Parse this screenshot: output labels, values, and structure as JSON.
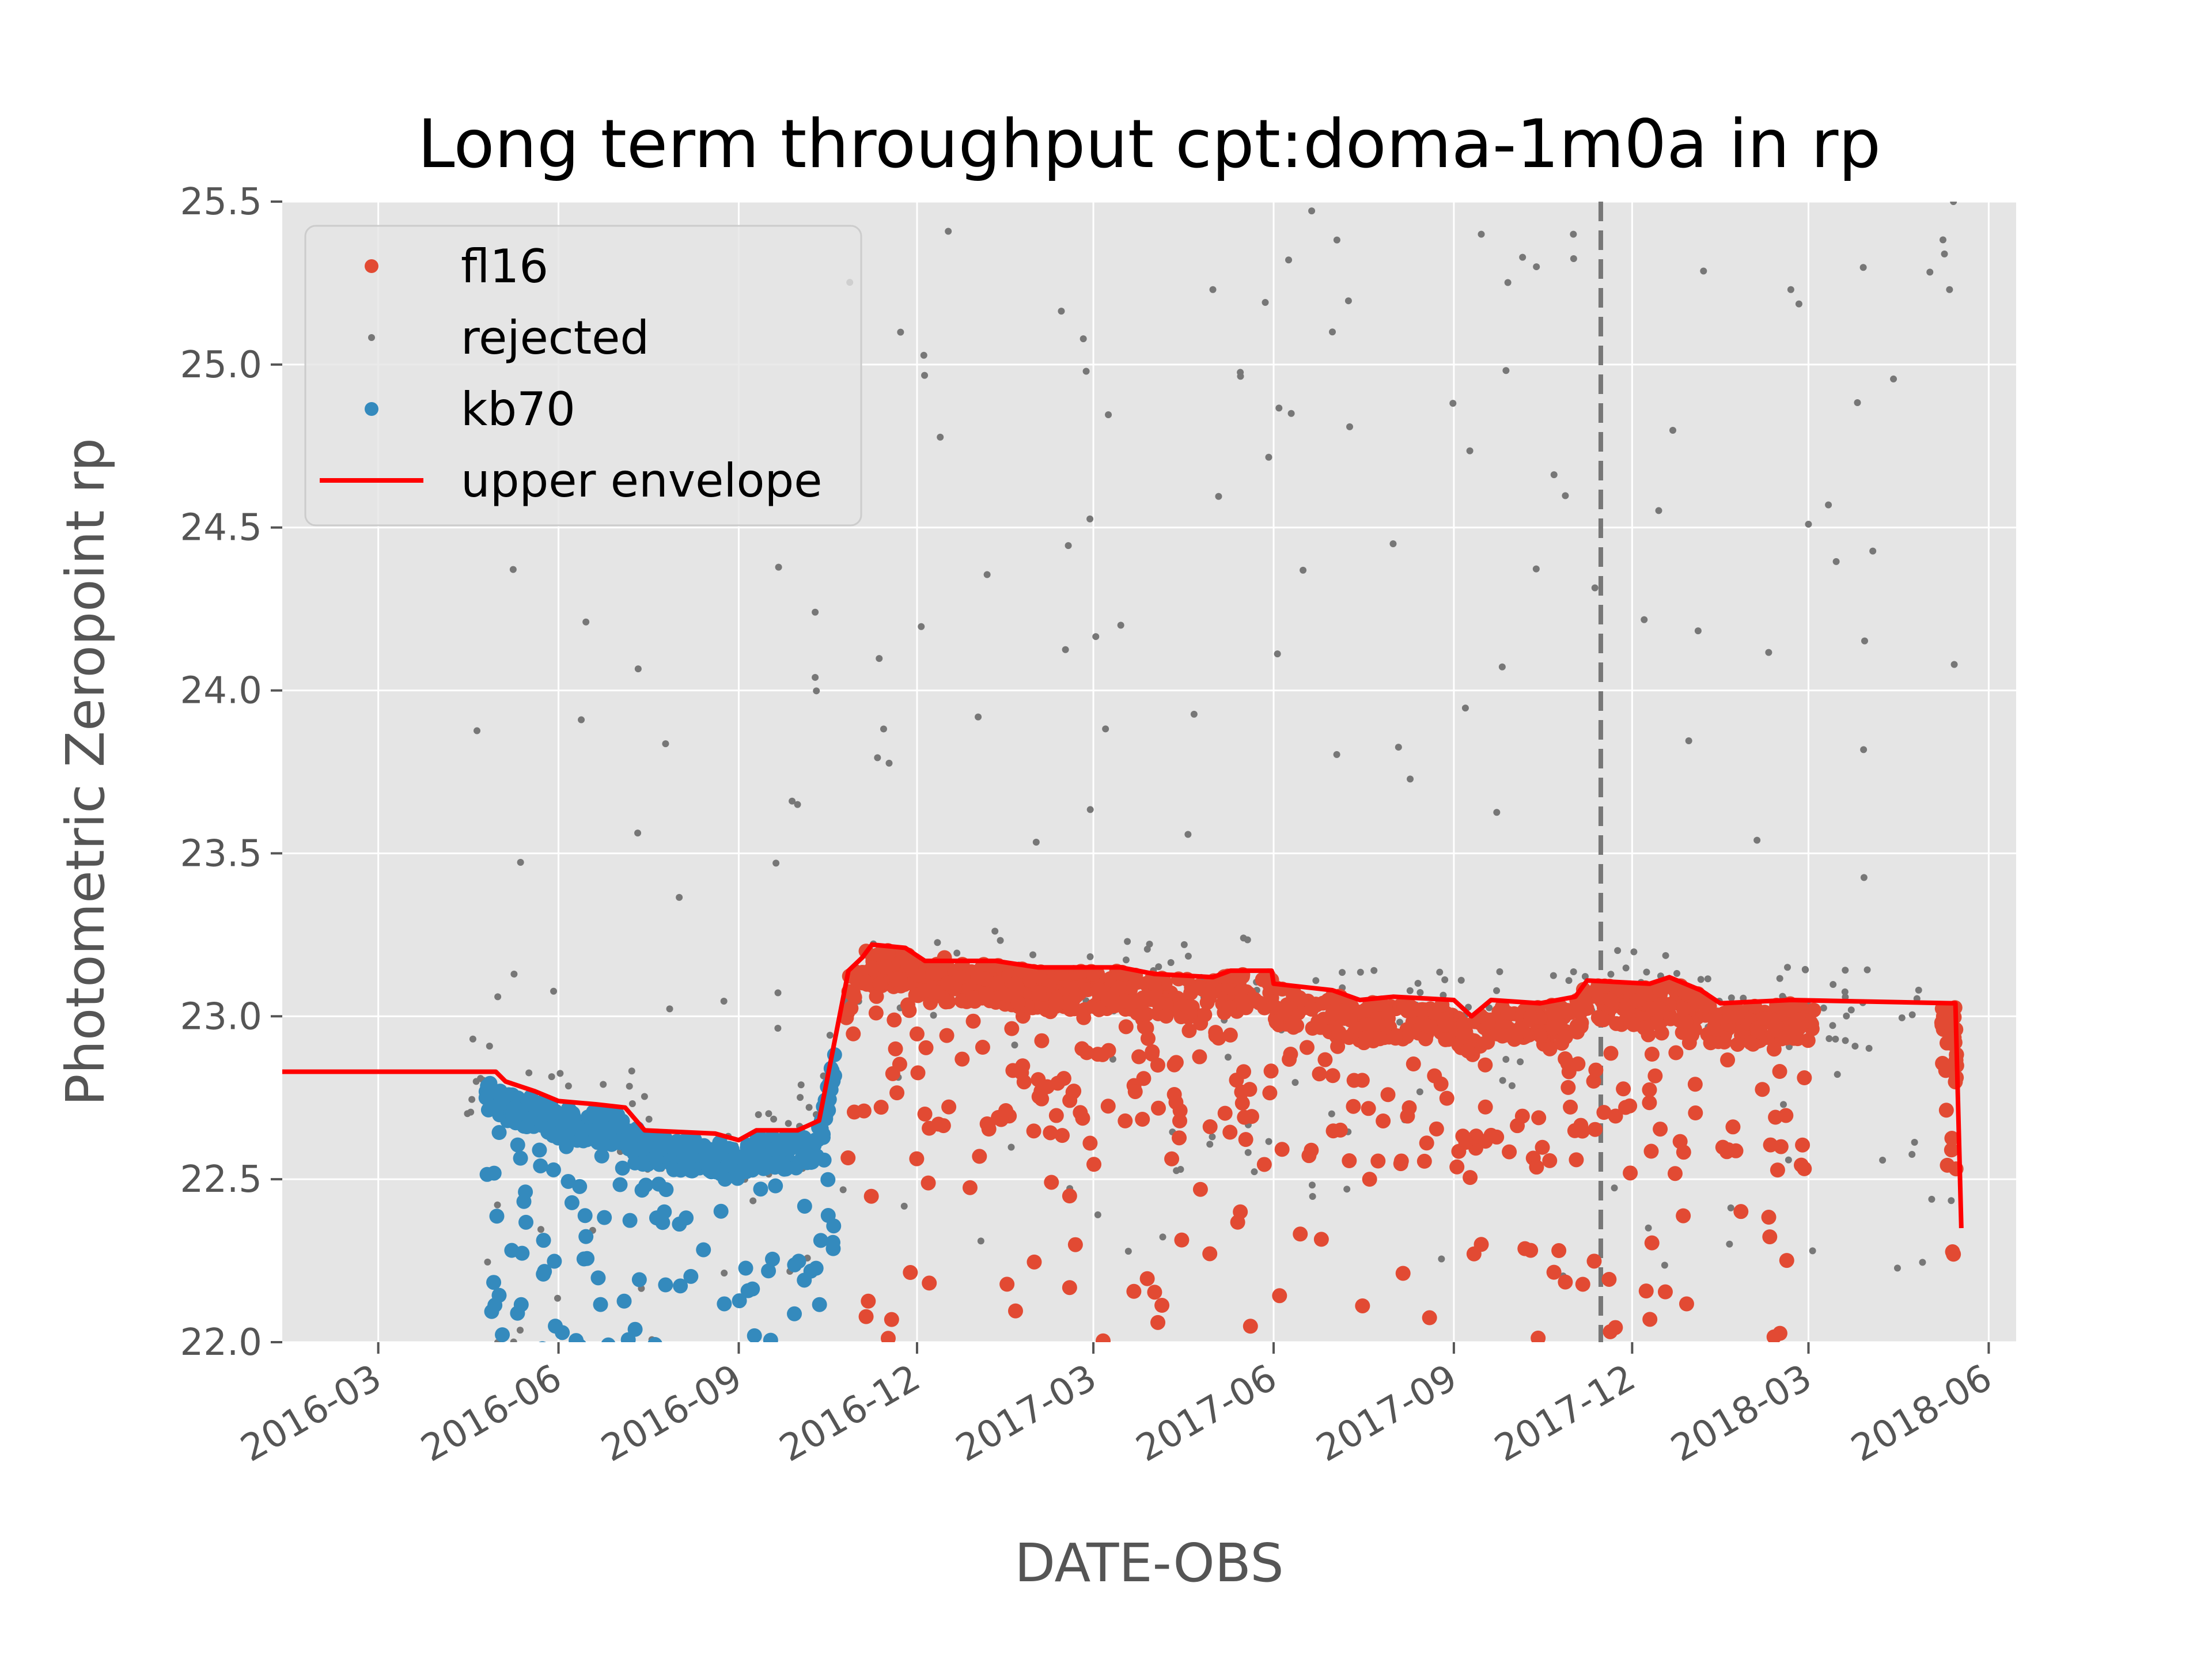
{
  "chart_data": {
    "type": "scatter",
    "title": "Long term throughput  cpt:doma-1m0a in rp",
    "xlabel": "DATE-OBS",
    "ylabel": "Photometric Zeropoint rp",
    "xlim": [
      "2016-01-12",
      "2018-06-15"
    ],
    "ylim": [
      22.0,
      25.5
    ],
    "x_ticks": [
      "2016-03",
      "2016-06",
      "2016-09",
      "2016-12",
      "2017-03",
      "2017-06",
      "2017-09",
      "2017-12",
      "2018-03",
      "2018-06"
    ],
    "y_ticks": [
      "22.0",
      "22.5",
      "23.0",
      "23.5",
      "24.0",
      "24.5",
      "25.0",
      "25.5"
    ],
    "grid": true,
    "legend": {
      "placement": "top-left",
      "entries": [
        {
          "label": "fl16",
          "color": "#e24a33",
          "marker": "dot"
        },
        {
          "label": "rejected",
          "color": "#777777",
          "marker": "small-dot"
        },
        {
          "label": "kb70",
          "color": "#348abd",
          "marker": "dot"
        },
        {
          "label": "upper envelope",
          "color": "#ff0000",
          "marker": "line"
        }
      ]
    },
    "vline": {
      "x": "2017-11-15",
      "style": "dashed",
      "color": "#777777"
    },
    "series": [
      {
        "name": "upper envelope",
        "kind": "line",
        "color": "#ff0000",
        "points": [
          [
            "2016-01-12",
            22.83
          ],
          [
            "2016-04-30",
            22.83
          ],
          [
            "2016-05-05",
            22.8
          ],
          [
            "2016-05-20",
            22.77
          ],
          [
            "2016-06-01",
            22.74
          ],
          [
            "2016-06-20",
            22.73
          ],
          [
            "2016-07-05",
            22.72
          ],
          [
            "2016-07-15",
            22.65
          ],
          [
            "2016-08-20",
            22.64
          ],
          [
            "2016-09-01",
            22.62
          ],
          [
            "2016-09-10",
            22.65
          ],
          [
            "2016-10-01",
            22.65
          ],
          [
            "2016-10-12",
            22.68
          ],
          [
            "2016-10-27",
            23.14
          ],
          [
            "2016-11-03",
            23.18
          ],
          [
            "2016-11-08",
            23.22
          ],
          [
            "2016-11-25",
            23.21
          ],
          [
            "2016-12-05",
            23.17
          ],
          [
            "2017-01-10",
            23.17
          ],
          [
            "2017-02-01",
            23.15
          ],
          [
            "2017-03-15",
            23.15
          ],
          [
            "2017-04-01",
            23.13
          ],
          [
            "2017-05-01",
            23.12
          ],
          [
            "2017-05-10",
            23.14
          ],
          [
            "2017-05-31",
            23.14
          ],
          [
            "2017-06-01",
            23.1
          ],
          [
            "2017-07-01",
            23.08
          ],
          [
            "2017-07-15",
            23.05
          ],
          [
            "2017-08-01",
            23.06
          ],
          [
            "2017-09-01",
            23.05
          ],
          [
            "2017-09-10",
            23.0
          ],
          [
            "2017-09-20",
            23.05
          ],
          [
            "2017-10-15",
            23.04
          ],
          [
            "2017-11-02",
            23.06
          ],
          [
            "2017-11-08",
            23.11
          ],
          [
            "2017-12-10",
            23.1
          ],
          [
            "2017-12-20",
            23.12
          ],
          [
            "2018-01-05",
            23.08
          ],
          [
            "2018-01-15",
            23.04
          ],
          [
            "2018-02-20",
            23.05
          ],
          [
            "2018-05-15",
            23.04
          ],
          [
            "2018-05-18",
            22.35
          ]
        ]
      },
      {
        "name": "fl16",
        "kind": "scatter",
        "color": "#e24a33",
        "points": [
          [
            "2016-11-05",
            23.2
          ],
          [
            "2016-11-12",
            23.1
          ],
          [
            "2016-11-20",
            22.9
          ],
          [
            "2016-11-28",
            23.15
          ],
          [
            "2016-12-05",
            22.7
          ],
          [
            "2016-12-15",
            23.18
          ],
          [
            "2017-01-01",
            23.12
          ],
          [
            "2017-01-20",
            23.1
          ],
          [
            "2017-02-10",
            23.05
          ],
          [
            "2017-03-01",
            23.13
          ],
          [
            "2017-04-01",
            23.1
          ],
          [
            "2017-05-15",
            22.4
          ],
          [
            "2017-06-15",
            23.05
          ],
          [
            "2017-07-20",
            22.5
          ],
          [
            "2017-08-15",
            23.02
          ],
          [
            "2017-09-15",
            22.3
          ],
          [
            "2017-10-20",
            22.9
          ],
          [
            "2017-11-20",
            23.05
          ],
          [
            "2017-12-15",
            23.08
          ],
          [
            "2018-01-20",
            23.0
          ],
          [
            "2018-02-15",
            22.6
          ],
          [
            "2018-05-12",
            23.02
          ],
          [
            "2018-05-14",
            22.27
          ]
        ]
      },
      {
        "name": "kb70",
        "kind": "scatter",
        "color": "#348abd",
        "points": [
          [
            "2016-04-25",
            22.75
          ],
          [
            "2016-05-10",
            22.72
          ],
          [
            "2016-05-25",
            22.7
          ],
          [
            "2016-06-05",
            22.6
          ],
          [
            "2016-06-20",
            22.65
          ],
          [
            "2016-07-10",
            22.55
          ],
          [
            "2016-07-25",
            22.4
          ],
          [
            "2016-08-10",
            22.6
          ],
          [
            "2016-08-25",
            22.5
          ],
          [
            "2016-09-10",
            22.55
          ],
          [
            "2016-09-25",
            22.6
          ],
          [
            "2016-10-10",
            22.62
          ]
        ]
      },
      {
        "name": "rejected",
        "kind": "scatter",
        "color": "#777777",
        "points": [
          [
            "2016-04-20",
            22.8
          ],
          [
            "2016-05-01",
            23.06
          ],
          [
            "2016-06-15",
            24.21
          ],
          [
            "2016-09-20",
            23.47
          ],
          [
            "2016-10-01",
            23.65
          ],
          [
            "2016-10-10",
            24.24
          ],
          [
            "2016-10-10",
            24.04
          ],
          [
            "2017-03-15",
            24.2
          ],
          [
            "2017-05-01",
            25.23
          ],
          [
            "2017-06-10",
            24.85
          ],
          [
            "2017-07-01",
            25.1
          ],
          [
            "2017-08-01",
            24.45
          ],
          [
            "2017-09-15",
            25.4
          ],
          [
            "2017-11-01",
            25.4
          ],
          [
            "2018-02-20",
            25.23
          ],
          [
            "2018-03-01",
            24.51
          ],
          [
            "2018-05-12",
            25.23
          ],
          [
            "2018-05-14",
            25.5
          ]
        ]
      }
    ]
  }
}
